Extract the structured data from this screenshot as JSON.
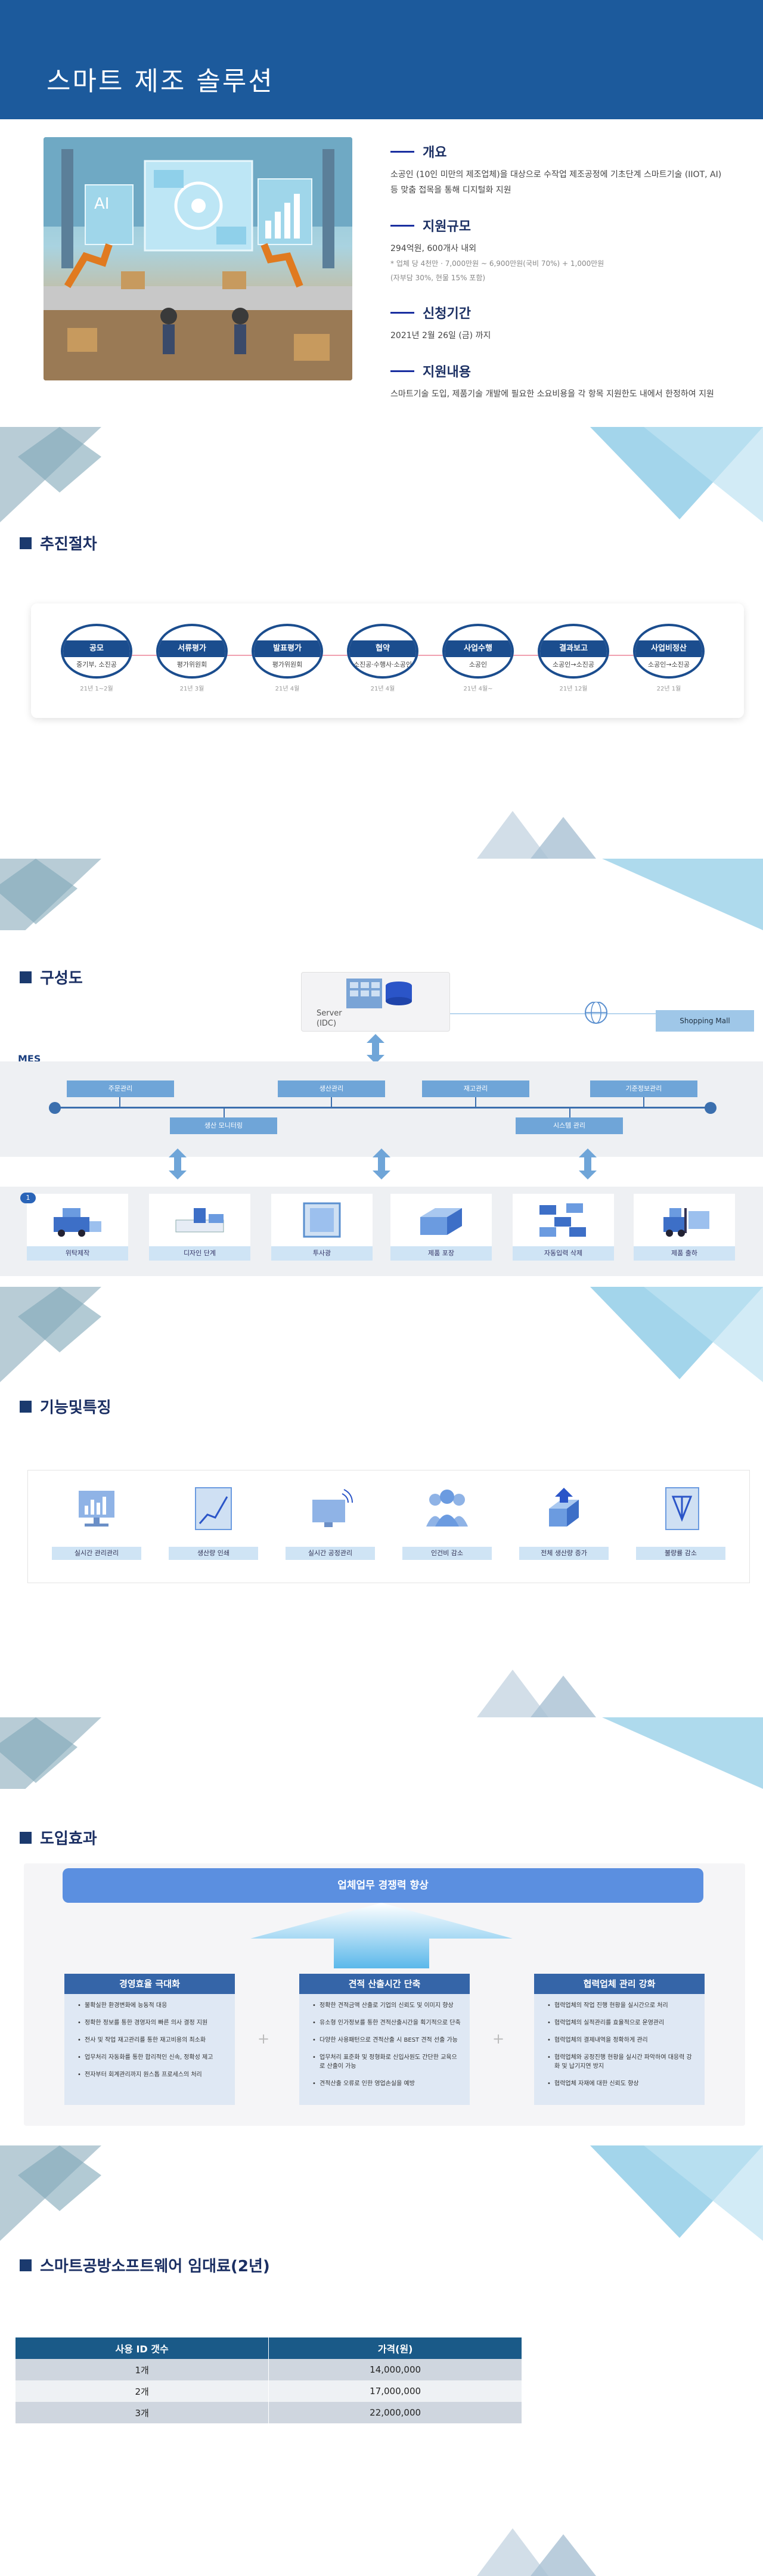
{
  "header": {
    "title": "스마트 제조 솔루션"
  },
  "intro": {
    "overview": {
      "label": "개요",
      "text": "소공인 (10인 미만의 제조업체)을 대상으로 수작업 제조공정에 기초단계 스마트기술 (IIOT, AI) 등 맞춤 접목을 통해 디지털화 지원"
    },
    "scale": {
      "label": "지원규모",
      "text": "294억원, 600개사 내외",
      "note1": "* 업체 당 4천만 · 7,000만원 ~ 6,900만원(국비 70%) + 1,000만원",
      "note2": "(자부담 30%, 현물 15% 포함)"
    },
    "period": {
      "label": "신청기간",
      "text": "2021년 2월 26일 (금) 까지"
    },
    "content": {
      "label": "지원내용",
      "text": "스마트기술 도입, 제품기술 개발에 필요한 소요비용을 각 항목 지원한도 내에서 한정하여 지원"
    }
  },
  "process": {
    "title": "추진절차",
    "steps": [
      {
        "label": "공모",
        "who": "중기부, 소진공",
        "when": "21년 1~2월"
      },
      {
        "label": "서류평가",
        "who": "평가위원회",
        "when": "21년 3월"
      },
      {
        "label": "발표평가",
        "who": "평가위원회",
        "when": "21년 4월"
      },
      {
        "label": "협약",
        "who": "소진공·수행사·소공인",
        "when": "21년 4월"
      },
      {
        "label": "사업수행",
        "who": "소공인",
        "when": "21년 4월~"
      },
      {
        "label": "결과보고",
        "who": "소공인→소진공",
        "when": "21년 12월"
      },
      {
        "label": "사업비정산",
        "who": "소공인→소진공",
        "when": "22년 1월"
      }
    ]
  },
  "architecture": {
    "title": "구성도",
    "server_label": "Server",
    "server_sub": "(IDC)",
    "shop_label": "Shopping Mall",
    "mes_label": "MES",
    "modules_top": [
      "주문관리",
      "생산관리",
      "재고관리",
      "기준정보관리"
    ],
    "modules_bottom": [
      "생산 모니터링",
      "시스템 관리"
    ],
    "badge": "1",
    "devices": [
      "위탁제작",
      "디자인 단계",
      "투사광",
      "제품 포장",
      "자동입력 삭제",
      "제품 출하"
    ]
  },
  "features": {
    "title": "기능및특징",
    "items": [
      "실시간 관리관리",
      "생산량 인쇄",
      "실시간 공정관리",
      "인건비 감소",
      "전체 생산량 증가",
      "불량률 감소"
    ]
  },
  "effects": {
    "title": "도입효과",
    "top": "업체업무 경쟁력 향상",
    "columns": [
      {
        "head": "경영효율 극대화",
        "bullets": [
          "불확실한 환경변화에 능동적 대응",
          "정확한 정보를 통한 경영자의 빠른 의사 결정 지원",
          "전사 및 작업 재고관리를 통한 재고비용의 최소화",
          "업무처리 자동화를 통한 합리적인 신속, 정확성 제고",
          "전자부터 회계관리까지 원스톱 프로세스의 처리"
        ]
      },
      {
        "head": "견적 산출시간 단축",
        "bullets": [
          "정확한 견적금액 산출로 기업의 신뢰도 및 이미지 향상",
          "유소형 인가정보를 통한 견적산출시간을 획기적으로 단축",
          "다양한 사용패턴으로 견적산출 시 BEST 견적 선출 가능",
          "업무처리 표준화 및 정형화로 신입사원도 간단한 교육으로 산출이 가능",
          "견적산출 오류로 인한 영업손실을 예방"
        ]
      },
      {
        "head": "협력업체 관리 강화",
        "bullets": [
          "협력업체의 작업 진행 현황을 실시간으로 처리",
          "협력업체의 실적관리를 효율적으로 운영관리",
          "협력업체의 결제내역을 정확하게 관리",
          "협력업체와 공정진행 현황을 실시간 파악하여 대응력 강화 및 납기지연 방지",
          "협력업체 자재에 대한 신뢰도 향상"
        ]
      }
    ]
  },
  "pricing": {
    "title": "스마트공방소프트웨어 임대료(2년)",
    "headers": [
      "사용 ID 갯수",
      "가격(원)"
    ],
    "rows": [
      [
        "1개",
        "14,000,000"
      ],
      [
        "2개",
        "17,000,000"
      ],
      [
        "3개",
        "22,000,000"
      ]
    ]
  },
  "colors": {
    "header_bg": "#1c5a9c",
    "accent": "#1b4d8e",
    "table_head": "#1a5a88"
  }
}
